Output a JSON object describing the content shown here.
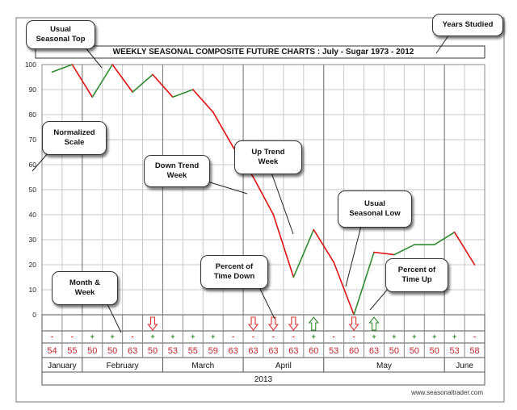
{
  "chart_data": {
    "type": "line",
    "title": "WEEKLY SEASONAL COMPOSITE FUTURE CHARTS : July - Sugar 1973 - 2012",
    "ylim": [
      0,
      100
    ],
    "y_ticks": [
      0,
      10,
      20,
      30,
      40,
      50,
      60,
      70,
      80,
      90,
      100
    ],
    "grid": true,
    "weeks": 22,
    "values": [
      97,
      100,
      87,
      100,
      89,
      96,
      87,
      90,
      81,
      67,
      55,
      40,
      15,
      34,
      21,
      0,
      25,
      24,
      28,
      28,
      33,
      20
    ],
    "direction_signs": [
      "-",
      "-",
      "+",
      "+",
      "-",
      "+",
      "+",
      "+",
      "+",
      "-",
      "-",
      "-",
      "-",
      "+",
      "-",
      "-",
      "+",
      "+",
      "+",
      "+",
      "+",
      "-"
    ],
    "percentages": [
      "54",
      "55",
      "50",
      "50",
      "63",
      "50",
      "53",
      "55",
      "59",
      "63",
      "63",
      "63",
      "63",
      "60",
      "53",
      "60",
      "63",
      "50",
      "50",
      "50",
      "53",
      "58"
    ],
    "arrows": [
      {
        "week": 5,
        "dir": "down"
      },
      {
        "week": 10,
        "dir": "down"
      },
      {
        "week": 11,
        "dir": "down"
      },
      {
        "week": 12,
        "dir": "down"
      },
      {
        "week": 13,
        "dir": "up"
      },
      {
        "week": 15,
        "dir": "down"
      },
      {
        "week": 16,
        "dir": "up"
      }
    ],
    "months": [
      {
        "name": "January",
        "start": 0,
        "end": 2
      },
      {
        "name": "February",
        "start": 2,
        "end": 6
      },
      {
        "name": "March",
        "start": 6,
        "end": 10
      },
      {
        "name": "April",
        "start": 10,
        "end": 14
      },
      {
        "name": "May",
        "start": 14,
        "end": 20
      },
      {
        "name": "June",
        "start": 20,
        "end": 22
      }
    ],
    "year": "2013",
    "colors": {
      "up": "#2e8b2e",
      "down": "#e01010",
      "pct": "#c0282e",
      "grid": "#c8c8c8",
      "arrow": "#e03030",
      "arrow_up": "#2e8b2e"
    }
  },
  "footer": {
    "url": "www.seasonaltrader.com"
  },
  "callouts": [
    {
      "id": "usual-seasonal-top",
      "text": "Usual\nSeasonal Top"
    },
    {
      "id": "years-studied",
      "text": "Years Studied"
    },
    {
      "id": "normalized-scale",
      "text": "Normalized\nScale"
    },
    {
      "id": "down-trend-week",
      "text": "Down Trend\nWeek"
    },
    {
      "id": "up-trend-week",
      "text": "Up Trend\nWeek"
    },
    {
      "id": "usual-seasonal-low",
      "text": "Usual\nSeasonal Low"
    },
    {
      "id": "percent-time-down",
      "text": "Percent of\nTime Down"
    },
    {
      "id": "percent-time-up",
      "text": "Percent of\nTime Up"
    },
    {
      "id": "month-week",
      "text": "Month &\nWeek"
    }
  ]
}
